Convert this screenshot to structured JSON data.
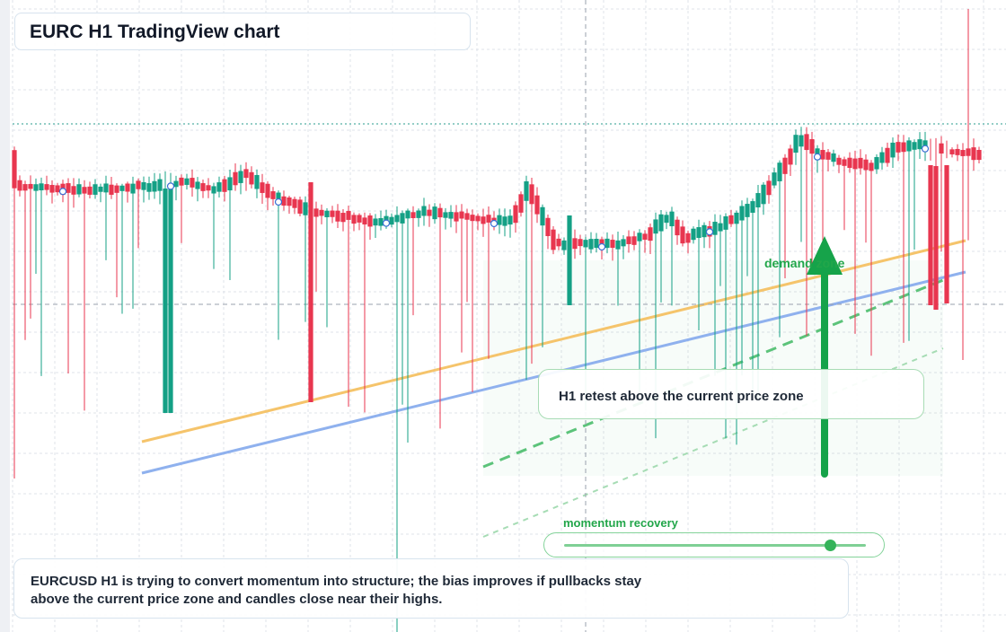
{
  "title": "EURC H1 TradingView chart",
  "annotation": "H1 retest above the current price zone",
  "summary": "EURCUSD H1 is trying to convert momentum into structure; the bias improves if pullbacks stay above the current price zone and candles close near their highs.",
  "zone_label": "demand zone",
  "momentum": {
    "label": "momentum recovery",
    "level": 0.88
  },
  "colors": {
    "up": "#14a085",
    "down": "#e8364f",
    "ema_fast": "#f5c46b",
    "ema_slow": "#8fb1ee",
    "demand": "#22a64a",
    "grid": "#dfe3ea"
  },
  "chart_data": {
    "type": "candlestick",
    "timeframe": "H1",
    "symbol": "EURCUSD",
    "candles_count": 180,
    "price_levels": {
      "resistance": 0.92,
      "current_zone": 0.4
    },
    "trend_lines": [
      {
        "name": "",
        "style": "solid",
        "color": "#f5c46b"
      },
      {
        "name": "",
        "style": "solid",
        "color": "#8fb1ee"
      },
      {
        "name": "",
        "style": "dashed",
        "color": "#22a64a"
      }
    ],
    "arrow": "up"
  }
}
